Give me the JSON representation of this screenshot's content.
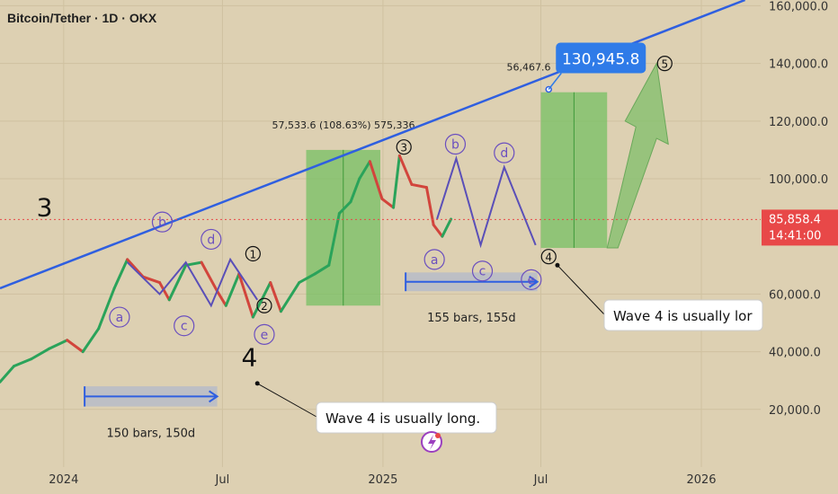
{
  "header": {
    "symbol_title": "Bitcoin/Tether · 1D · OKX"
  },
  "chart_data": {
    "type": "line",
    "series": [
      {
        "x": [
          "2023-10-20",
          "2023-11-05",
          "2023-11-25",
          "2023-12-15",
          "2024-01-05",
          "2024-01-23",
          "2024-02-10",
          "2024-02-28",
          "2024-03-14",
          "2024-04-01",
          "2024-04-20",
          "2024-05-01",
          "2024-05-20",
          "2024-06-07",
          "2024-06-25",
          "2024-07-05",
          "2024-07-20",
          "2024-08-05",
          "2024-08-25",
          "2024-09-06",
          "2024-09-27",
          "2024-10-15",
          "2024-10-31",
          "2024-11-12",
          "2024-11-25",
          "2024-12-05",
          "2024-12-17",
          "2024-12-31",
          "2025-01-13",
          "2025-01-20",
          "2025-02-03",
          "2025-02-20",
          "2025-02-28",
          "2025-03-10",
          "2025-03-20"
        ],
        "values": [
          29500,
          35000,
          37500,
          41000,
          44000,
          40000,
          48000,
          62000,
          72000,
          66000,
          64000,
          58000,
          70000,
          71000,
          61000,
          56000,
          67000,
          52000,
          64000,
          54000,
          64000,
          67000,
          70000,
          88000,
          92000,
          100000,
          106000,
          93000,
          90000,
          108000,
          98000,
          97000,
          84000,
          80000,
          86000
        ]
      }
    ],
    "xlim": [
      "2023-10-20",
      "2026-03-10"
    ],
    "ylim": [
      0,
      162000
    ],
    "x_tick_labels": [
      "2024",
      "Jul",
      "2025",
      "Jul",
      "2026"
    ],
    "y_tick_labels": [
      "160,000.0",
      "140,000.0",
      "120,000.0",
      "100,000.0",
      "60,000.0",
      "40,000.0",
      "20,000.0"
    ],
    "current_price": {
      "price_label": "85,858.4",
      "time_label": "14:41:00",
      "value": 85858.4
    },
    "trendline": {
      "points": [
        [
          "2023-10-20",
          62000
        ],
        [
          "2026-02-20",
          162000
        ]
      ],
      "color": "#2f5fe0"
    },
    "target_callout": {
      "value_label": "130,945.8",
      "point": [
        "2025-07-10",
        131000
      ]
    },
    "projection_zigzag": [
      [
        "2025-03-04",
        86000
      ],
      [
        "2025-03-26",
        107000
      ],
      [
        "2025-04-23",
        77000
      ],
      [
        "2025-05-20",
        104000
      ],
      [
        "2025-06-25",
        77000
      ]
    ],
    "pattern_zigzag": [
      [
        "2024-03-14",
        71000
      ],
      [
        "2024-04-20",
        60000
      ],
      [
        "2024-05-20",
        71000
      ],
      [
        "2024-06-18",
        56000
      ],
      [
        "2024-07-10",
        72000
      ],
      [
        "2024-08-10",
        58000
      ]
    ],
    "ranges": [
      {
        "from": [
          "2024-10-05",
          56000
        ],
        "to": [
          "2024-12-29",
          110000
        ],
        "color": "#6fbf5e",
        "labels": [
          "57,533.6 (108.63%) 575,336"
        ]
      },
      {
        "from": [
          "2025-07-01",
          76000
        ],
        "to": [
          "2025-09-15",
          130000
        ],
        "color": "#6fbf5e",
        "labels": [
          "56,467.6"
        ]
      }
    ],
    "bars_ranges": [
      {
        "from": [
          "2024-01-25",
          21000
        ],
        "to": [
          "2024-06-25",
          28000
        ],
        "label": "150 bars, 150d"
      },
      {
        "from": [
          "2025-01-27",
          61000
        ],
        "to": [
          "2025-06-27",
          67500
        ],
        "label": "155 bars, 155d"
      }
    ],
    "wave_labels": [
      {
        "text": "a",
        "at": [
          "2024-03-05",
          52000
        ],
        "style": "circle-purple"
      },
      {
        "text": "b",
        "at": [
          "2024-04-23",
          85000
        ],
        "style": "circle-purple"
      },
      {
        "text": "c",
        "at": [
          "2024-05-18",
          49000
        ],
        "style": "circle-purple"
      },
      {
        "text": "d",
        "at": [
          "2024-06-18",
          79000
        ],
        "style": "circle-purple"
      },
      {
        "text": "e",
        "at": [
          "2024-08-18",
          46000
        ],
        "style": "circle-purple"
      },
      {
        "text": "1",
        "at": [
          "2024-08-05",
          74000
        ],
        "style": "circle-black"
      },
      {
        "text": "2",
        "at": [
          "2024-08-18",
          56000
        ],
        "style": "circle-black"
      },
      {
        "text": "3",
        "at": [
          "2025-01-25",
          111000
        ],
        "style": "circle-black"
      },
      {
        "text": "b",
        "at": [
          "2025-03-25",
          112000
        ],
        "style": "circle-purple"
      },
      {
        "text": "d",
        "at": [
          "2025-05-20",
          109000
        ],
        "style": "circle-purple"
      },
      {
        "text": "a",
        "at": [
          "2025-03-01",
          72000
        ],
        "style": "circle-purple"
      },
      {
        "text": "c",
        "at": [
          "2025-04-25",
          68000
        ],
        "style": "circle-purple"
      },
      {
        "text": "e",
        "at": [
          "2025-06-20",
          65000
        ],
        "style": "circle-purple"
      },
      {
        "text": "4",
        "at": [
          "2025-07-10",
          73000
        ],
        "style": "circle-black"
      },
      {
        "text": "5",
        "at": [
          "2025-11-20",
          140000
        ],
        "style": "circle-black"
      }
    ],
    "big_labels": [
      {
        "text": "3",
        "at": [
          "2023-12-10",
          87000
        ]
      },
      {
        "text": "4",
        "at": [
          "2024-08-01",
          35000
        ]
      }
    ],
    "notes": [
      {
        "text": "Wave 4 is usually long.",
        "anchor": [
          "2024-08-10",
          29000
        ]
      },
      {
        "text": "Wave 4 is usually lor",
        "anchor": [
          "2025-07-20",
          70000
        ]
      }
    ],
    "grid": true,
    "price_axis_side": "right",
    "colors": {
      "background": "#ddd0b2",
      "up": "#2aa35a",
      "down": "#d2453c",
      "trendline": "#2f5fe0",
      "label_purple": "#6b4fbf",
      "price_badge": "#e84848"
    }
  }
}
